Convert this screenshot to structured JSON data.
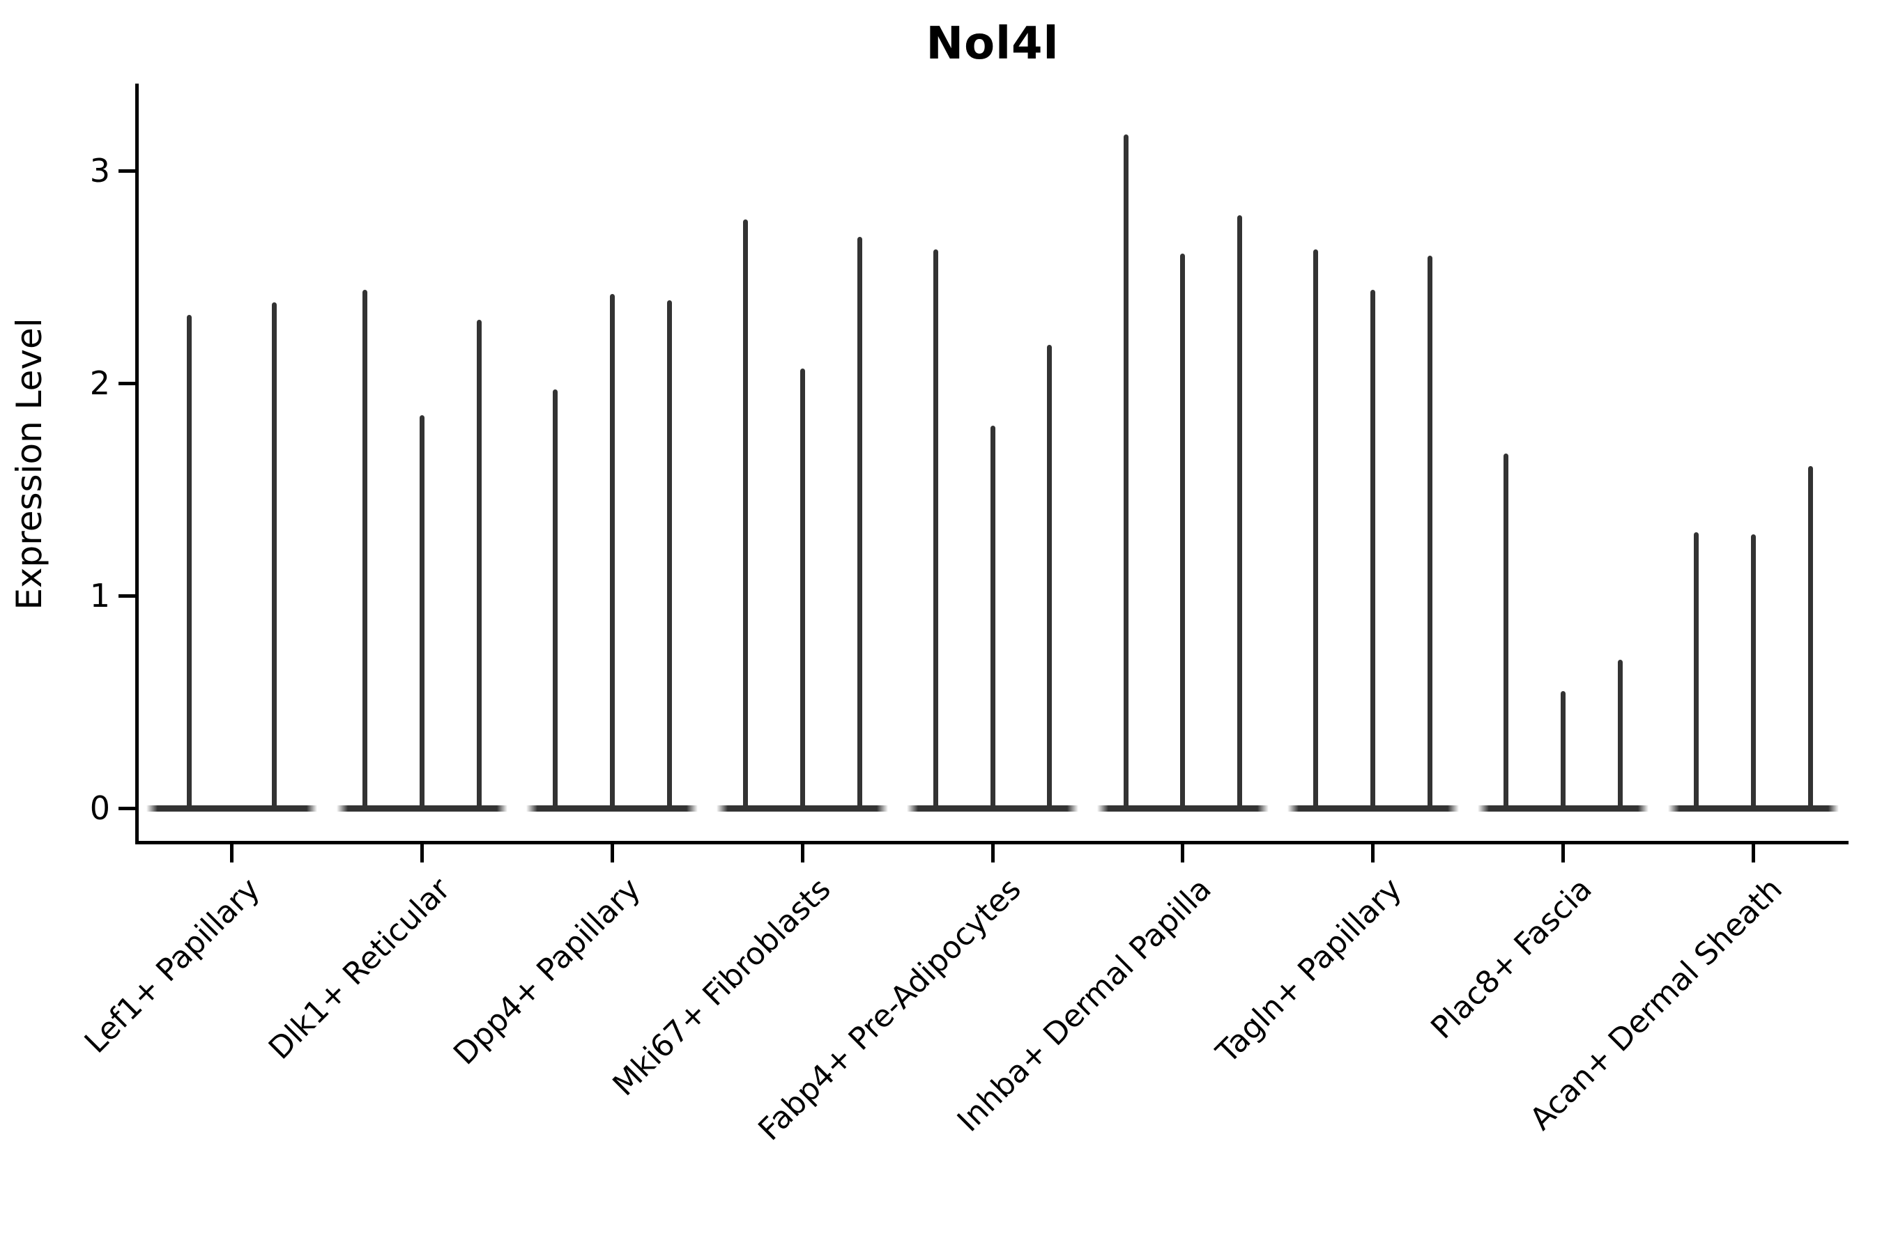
{
  "chart_data": {
    "type": "violin",
    "title": "Nol4l",
    "xlabel": "",
    "ylabel": "Expression Level",
    "ylim": [
      0,
      3.4
    ],
    "yticks": [
      0,
      1,
      2,
      3
    ],
    "legend": "none",
    "grid": false,
    "violin_color": "#333333",
    "axis_color": "#000000",
    "groups": [
      {
        "label": "Lef1+ Papillary",
        "violin_max_values": [
          2.32,
          2.38
        ]
      },
      {
        "label": "Dlk1+ Reticular",
        "violin_max_values": [
          2.44,
          1.85,
          2.3
        ]
      },
      {
        "label": "Dpp4+ Papillary",
        "violin_max_values": [
          1.97,
          2.42,
          2.39
        ]
      },
      {
        "label": "Mki67+ Fibroblasts",
        "violin_max_values": [
          2.77,
          2.07,
          2.69
        ]
      },
      {
        "label": "Fabp4+ Pre-Adipocytes",
        "violin_max_values": [
          2.63,
          1.8,
          2.18
        ]
      },
      {
        "label": "Inhba+ Dermal Papilla",
        "violin_max_values": [
          3.17,
          2.61,
          2.79
        ]
      },
      {
        "label": "Tagln+ Papillary",
        "violin_max_values": [
          2.63,
          2.44,
          2.6
        ]
      },
      {
        "label": "Plac8+ Fascia",
        "violin_max_values": [
          1.67,
          0.55,
          0.7
        ]
      },
      {
        "label": "Acan+ Dermal Sheath",
        "violin_max_values": [
          1.3,
          1.29,
          1.61
        ]
      }
    ]
  }
}
